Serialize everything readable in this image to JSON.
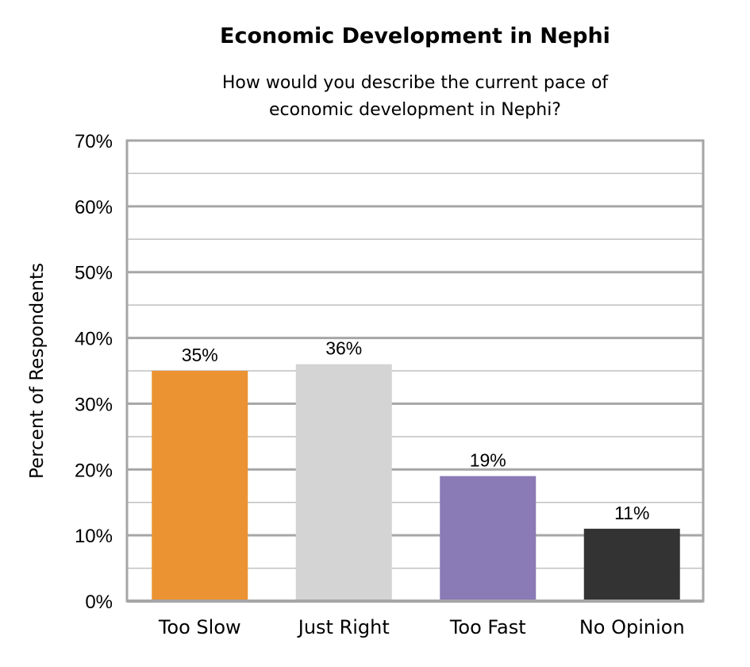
{
  "chart_data": {
    "type": "bar",
    "title": "Economic Development in Nephi",
    "subtitle_lines": [
      "How would you describe the current pace of",
      "economic development in Nephi?"
    ],
    "ylabel": "Percent of Respondents",
    "xlabel": "",
    "categories": [
      "Too Slow",
      "Just Right",
      "Too Fast",
      "No Opinion"
    ],
    "values": [
      35,
      36,
      19,
      11
    ],
    "data_labels": [
      "35%",
      "36%",
      "19%",
      "11%"
    ],
    "colors": [
      "#EB9333",
      "#D4D4D4",
      "#8A7AB5",
      "#333333"
    ],
    "ylim": [
      0,
      70
    ],
    "yticks": [
      "0%",
      "10%",
      "20%",
      "30%",
      "40%",
      "50%",
      "60%",
      "70%"
    ],
    "grid": true,
    "legend": "none"
  }
}
